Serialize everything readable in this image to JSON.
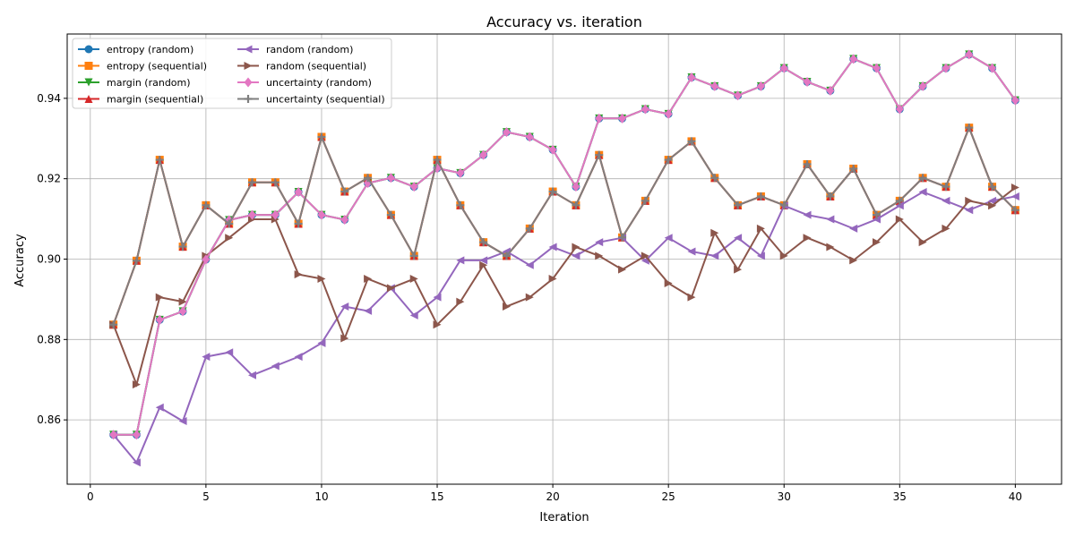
{
  "chart_data": {
    "type": "line",
    "title": "Accuracy vs. iteration",
    "xlabel": "Iteration",
    "ylabel": "Accuracy",
    "xlim": [
      -1,
      42
    ],
    "ylim": [
      0.844,
      0.956
    ],
    "xticks": [
      0,
      5,
      10,
      15,
      20,
      25,
      30,
      35,
      40
    ],
    "yticks": [
      0.86,
      0.88,
      0.9,
      0.92,
      0.94
    ],
    "ytick_labels": [
      "0.86",
      "0.88",
      "0.90",
      "0.92",
      "0.94"
    ],
    "grid": true,
    "legend_position": "top-left",
    "x": [
      1,
      2,
      3,
      4,
      5,
      6,
      7,
      8,
      9,
      10,
      11,
      12,
      13,
      14,
      15,
      16,
      17,
      18,
      19,
      20,
      21,
      22,
      23,
      24,
      25,
      26,
      27,
      28,
      29,
      30,
      31,
      32,
      33,
      34,
      35,
      36,
      37,
      38,
      39,
      40
    ],
    "series": [
      {
        "name": "entropy (random)",
        "color": "#1f77b4",
        "marker": "circle",
        "values": [
          0.8563,
          0.8563,
          0.8849,
          0.887,
          0.8999,
          0.9097,
          0.911,
          0.911,
          0.9167,
          0.911,
          0.9098,
          0.9189,
          0.9202,
          0.918,
          0.9226,
          0.9214,
          0.9259,
          0.9316,
          0.9304,
          0.9272,
          0.918,
          0.935,
          0.935,
          0.9373,
          0.9361,
          0.9452,
          0.943,
          0.9407,
          0.943,
          0.9475,
          0.9441,
          0.9419,
          0.9498,
          0.9475,
          0.9373,
          0.943,
          0.9475,
          0.9509,
          0.9475,
          0.9395
        ]
      },
      {
        "name": "entropy (sequential)",
        "color": "#ff7f0e",
        "marker": "square",
        "values": [
          0.8837,
          0.8996,
          0.9247,
          0.9031,
          0.9134,
          0.9088,
          0.9191,
          0.9191,
          0.9088,
          0.9304,
          0.9168,
          0.9202,
          0.911,
          0.9008,
          0.9247,
          0.9134,
          0.9042,
          0.9008,
          0.9076,
          0.9168,
          0.9134,
          0.9259,
          0.9054,
          0.9145,
          0.9247,
          0.9293,
          0.9202,
          0.9134,
          0.9156,
          0.9134,
          0.9236,
          0.9156,
          0.9225,
          0.911,
          0.9145,
          0.9202,
          0.918,
          0.9327,
          0.918,
          0.9122
        ]
      },
      {
        "name": "margin (random)",
        "color": "#2ca02c",
        "marker": "triangle-down",
        "values": [
          0.8563,
          0.8563,
          0.8849,
          0.887,
          0.8999,
          0.9097,
          0.911,
          0.911,
          0.9167,
          0.911,
          0.9098,
          0.9189,
          0.9202,
          0.918,
          0.9226,
          0.9214,
          0.9259,
          0.9316,
          0.9304,
          0.9272,
          0.918,
          0.935,
          0.935,
          0.9373,
          0.9361,
          0.9452,
          0.943,
          0.9407,
          0.943,
          0.9475,
          0.9441,
          0.9419,
          0.9498,
          0.9475,
          0.9373,
          0.943,
          0.9475,
          0.9509,
          0.9475,
          0.9395
        ]
      },
      {
        "name": "margin (sequential)",
        "color": "#d62728",
        "marker": "triangle-up",
        "values": [
          0.8837,
          0.8996,
          0.9247,
          0.9031,
          0.9134,
          0.9088,
          0.9191,
          0.9191,
          0.9088,
          0.9304,
          0.9168,
          0.9202,
          0.911,
          0.9008,
          0.9247,
          0.9134,
          0.9042,
          0.9008,
          0.9076,
          0.9168,
          0.9134,
          0.9259,
          0.9054,
          0.9145,
          0.9247,
          0.9293,
          0.9202,
          0.9134,
          0.9156,
          0.9134,
          0.9236,
          0.9156,
          0.9225,
          0.911,
          0.9145,
          0.9202,
          0.918,
          0.9327,
          0.918,
          0.9122
        ]
      },
      {
        "name": "random (random)",
        "color": "#9467bd",
        "marker": "triangle-left",
        "values": [
          0.8563,
          0.8494,
          0.8631,
          0.8597,
          0.8757,
          0.8768,
          0.8711,
          0.8734,
          0.8757,
          0.8791,
          0.8882,
          0.8871,
          0.8928,
          0.886,
          0.8905,
          0.8997,
          0.8997,
          0.9019,
          0.8985,
          0.903,
          0.9008,
          0.9042,
          0.9053,
          0.8996,
          0.9053,
          0.9019,
          0.9008,
          0.9053,
          0.9008,
          0.9133,
          0.911,
          0.9099,
          0.9076,
          0.9099,
          0.9133,
          0.9167,
          0.9145,
          0.9122,
          0.9145,
          0.9156
        ]
      },
      {
        "name": "random (sequential)",
        "color": "#8c564b",
        "marker": "triangle-right",
        "values": [
          0.8837,
          0.8688,
          0.8905,
          0.8894,
          0.9008,
          0.9053,
          0.9099,
          0.9099,
          0.8962,
          0.8951,
          0.8803,
          0.8951,
          0.8928,
          0.8951,
          0.8837,
          0.8894,
          0.8985,
          0.8882,
          0.8905,
          0.8951,
          0.903,
          0.9008,
          0.8974,
          0.9008,
          0.894,
          0.8905,
          0.9065,
          0.8974,
          0.9076,
          0.9008,
          0.9053,
          0.903,
          0.8997,
          0.9042,
          0.9099,
          0.9042,
          0.9076,
          0.9145,
          0.9133,
          0.9178
        ]
      },
      {
        "name": "uncertainty (random)",
        "color": "#e377c2",
        "marker": "diamond",
        "values": [
          0.8563,
          0.8563,
          0.8849,
          0.887,
          0.8999,
          0.9097,
          0.911,
          0.911,
          0.9167,
          0.911,
          0.9098,
          0.9189,
          0.9202,
          0.918,
          0.9226,
          0.9214,
          0.9259,
          0.9316,
          0.9304,
          0.9272,
          0.918,
          0.935,
          0.935,
          0.9373,
          0.9361,
          0.9452,
          0.943,
          0.9407,
          0.943,
          0.9475,
          0.9441,
          0.9419,
          0.9498,
          0.9475,
          0.9373,
          0.943,
          0.9475,
          0.9509,
          0.9475,
          0.9395
        ]
      },
      {
        "name": "uncertainty (sequential)",
        "color": "#7f7f7f",
        "marker": "plus",
        "values": [
          0.8837,
          0.8996,
          0.9247,
          0.9031,
          0.9134,
          0.9088,
          0.9191,
          0.9191,
          0.9088,
          0.9304,
          0.9168,
          0.9202,
          0.911,
          0.9008,
          0.9247,
          0.9134,
          0.9042,
          0.9008,
          0.9076,
          0.9168,
          0.9134,
          0.9259,
          0.9054,
          0.9145,
          0.9247,
          0.9293,
          0.9202,
          0.9134,
          0.9156,
          0.9134,
          0.9236,
          0.9156,
          0.9225,
          0.911,
          0.9145,
          0.9202,
          0.918,
          0.9327,
          0.918,
          0.9122
        ]
      }
    ]
  }
}
